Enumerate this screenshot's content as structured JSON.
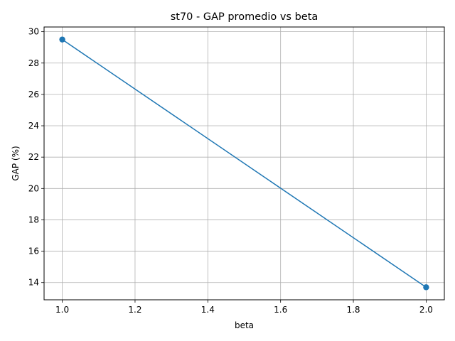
{
  "chart_data": {
    "type": "line",
    "title": "st70 - GAP promedio vs beta",
    "xlabel": "beta",
    "ylabel": "GAP (%)",
    "x": [
      1.0,
      2.0
    ],
    "series": [
      {
        "values": [
          29.5,
          13.7
        ],
        "color": "#1f77b4",
        "marker": "circle"
      }
    ],
    "xlim": [
      0.95,
      2.05
    ],
    "ylim": [
      12.9,
      30.3
    ],
    "xticks": [
      1.0,
      1.2,
      1.4,
      1.6,
      1.8,
      2.0
    ],
    "xtick_labels": [
      "1.0",
      "1.2",
      "1.4",
      "1.6",
      "1.8",
      "2.0"
    ],
    "yticks": [
      14,
      16,
      18,
      20,
      22,
      24,
      26,
      28,
      30
    ],
    "ytick_labels": [
      "14",
      "16",
      "18",
      "20",
      "22",
      "24",
      "26",
      "28",
      "30"
    ],
    "grid": true,
    "legend": false
  }
}
